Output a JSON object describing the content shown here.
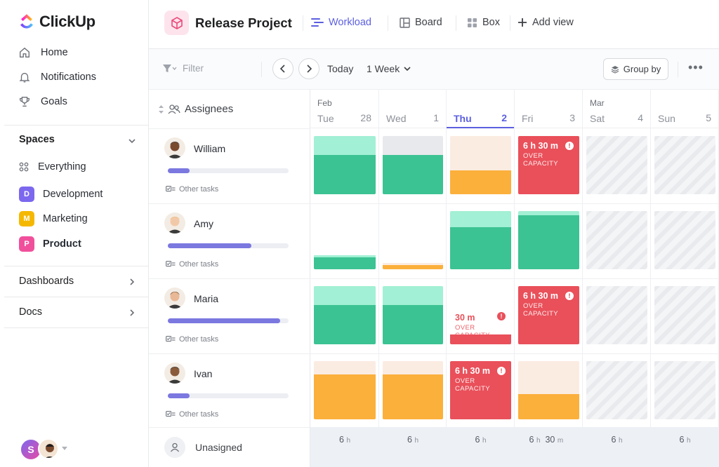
{
  "app": {
    "brand": "ClickUp"
  },
  "sidebar": {
    "nav": [
      {
        "label": "Home",
        "icon": "home-icon"
      },
      {
        "label": "Notifications",
        "icon": "bell-icon"
      },
      {
        "label": "Goals",
        "icon": "trophy-icon"
      }
    ],
    "spaces_title": "Spaces",
    "spaces": [
      {
        "label": "Everything",
        "icon": "grid-icon"
      },
      {
        "label": "Development",
        "badge": "D",
        "color": "#7b68ee"
      },
      {
        "label": "Marketing",
        "badge": "M",
        "color": "#f5b800"
      },
      {
        "label": "Product",
        "badge": "P",
        "color": "#f0509b"
      }
    ],
    "dashboards": "Dashboards",
    "docs": "Docs",
    "user_initial": "S"
  },
  "header": {
    "project": "Release Project",
    "views": [
      {
        "label": "Workload",
        "icon": "workload-icon",
        "active": true
      },
      {
        "label": "Board",
        "icon": "board-icon"
      },
      {
        "label": "Box",
        "icon": "box-icon"
      }
    ],
    "add_view": "Add view"
  },
  "toolbar": {
    "filter": "Filter",
    "today": "Today",
    "range": "1 Week",
    "group_by": "Group by"
  },
  "workload": {
    "assignees_header": "Assignees",
    "other_tasks": "Other tasks",
    "days": [
      {
        "month": "Feb",
        "name": "Tue",
        "num": "28"
      },
      {
        "month": "",
        "name": "Wed",
        "num": "1"
      },
      {
        "month": "",
        "name": "Thu",
        "num": "2",
        "today": true
      },
      {
        "month": "",
        "name": "Fri",
        "num": "3"
      },
      {
        "month": "Mar",
        "name": "Sat",
        "num": "4",
        "weekend": true
      },
      {
        "month": "",
        "name": "Sun",
        "num": "5",
        "weekend": true
      }
    ],
    "people": [
      {
        "name": "William",
        "progress": 0.18,
        "skin": "#7a4a2e",
        "hair": "#1c1c1c"
      },
      {
        "name": "Amy",
        "progress": 0.69,
        "skin": "#f2c9a8",
        "hair": "#e8b36a"
      },
      {
        "name": "Maria",
        "progress": 0.93,
        "skin": "#e9b896",
        "hair": "#6b3b1f"
      },
      {
        "name": "Ivan",
        "progress": 0.18,
        "skin": "#8a5a3a",
        "hair": "#1c1c1c"
      }
    ],
    "over_label": "OVER CAPACITY",
    "over_hours": [
      "6 h 30 m",
      "6 h 30 m",
      "30 m",
      "6 h 30 m"
    ],
    "unassigned": "Unasigned",
    "totals": [
      {
        "h": "6",
        "m": ""
      },
      {
        "h": "6",
        "m": ""
      },
      {
        "h": "6",
        "m": ""
      },
      {
        "h": "6",
        "m": "30"
      },
      {
        "h": "6",
        "m": ""
      },
      {
        "h": "6",
        "m": ""
      }
    ],
    "unit_h": "h",
    "unit_m": "m"
  },
  "colors": {
    "accent": "#5b5fe0",
    "green": "#3cc393",
    "green_light": "#a2f0d5",
    "orange": "#fbb03b",
    "peach": "#fbece2",
    "red": "#e9505a",
    "gray": "#e8e9ec"
  }
}
